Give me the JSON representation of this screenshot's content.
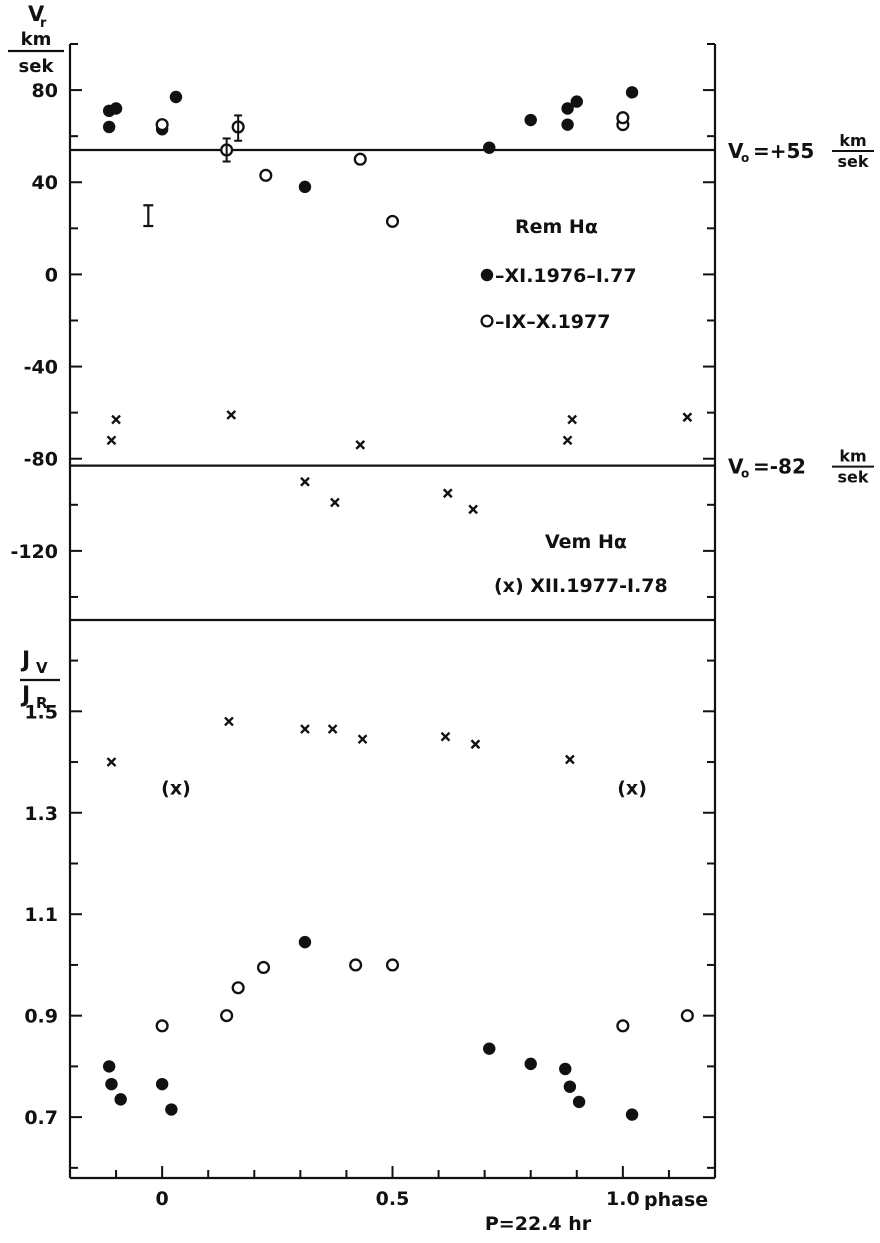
{
  "chart_data": [
    {
      "type": "scatter",
      "panel": "upper",
      "y_axis_label": {
        "symbol": "V",
        "subscript": "r",
        "unit_top": "km",
        "unit_bottom": "sek"
      },
      "ylim": [
        -150,
        100
      ],
      "xlim": [
        -0.2,
        1.2
      ],
      "y_ticks": [
        80,
        40,
        0,
        -40,
        -80,
        -120
      ],
      "y_tick_labels": [
        "80",
        "40",
        "0",
        "-40",
        "-80",
        "-120"
      ],
      "reference_lines": [
        {
          "y": 54,
          "label": "V",
          "sub": "o",
          "value_text": "=+55",
          "unit_top": "km",
          "unit_bottom": "sek"
        },
        {
          "y": -83,
          "label": "V",
          "sub": "o",
          "value_text": "=-82",
          "unit_top": "km",
          "unit_bottom": "sek"
        }
      ],
      "annotations": {
        "rem_label": "Rem Hα",
        "vem_label": "Vem Hα",
        "vem_legend_text": "(x)  XII.1977-I.78"
      },
      "legend": [
        {
          "marker": "filled-circle",
          "text": "–XI.1976–I.77"
        },
        {
          "marker": "open-circle",
          "text": "–IX–X.1977"
        }
      ],
      "error_bar_sample": {
        "x": -0.03,
        "y_low": 21,
        "y_high": 30
      },
      "series": [
        {
          "name": "–XI.1976–I.77",
          "marker": "filled-circle",
          "x": [
            -0.115,
            -0.1,
            -0.115,
            0.0,
            0.03,
            0.31,
            0.71,
            0.8,
            0.88,
            0.9,
            0.88,
            1.02
          ],
          "y": [
            71,
            72,
            64,
            63,
            77,
            38,
            55,
            67,
            72,
            75,
            65,
            79
          ]
        },
        {
          "name": "–IX–X.1977",
          "marker": "open-circle",
          "x": [
            0.0,
            0.14,
            0.165,
            0.225,
            0.43,
            0.5,
            1.0,
            1.0
          ],
          "y": [
            65,
            54,
            64,
            43,
            50,
            23,
            65,
            68
          ],
          "error_bars": [
            {
              "x": 0.14,
              "low": 49,
              "high": 59
            },
            {
              "x": 0.165,
              "low": 58,
              "high": 69
            }
          ]
        },
        {
          "name": "(x)  XII.1977-I.78",
          "marker": "x",
          "x": [
            -0.11,
            -0.1,
            0.15,
            0.31,
            0.375,
            0.43,
            0.62,
            0.675,
            0.88,
            0.89,
            1.14
          ],
          "y": [
            -72,
            -63,
            -61,
            -90,
            -99,
            -74,
            -95,
            -102,
            -72,
            -63,
            -62
          ]
        }
      ]
    },
    {
      "type": "scatter",
      "panel": "lower",
      "y_axis_label": {
        "numerator": "J",
        "numerator_sub": "V",
        "denominator": "J",
        "denominator_sub": "R"
      },
      "ylim": [
        0.58,
        1.68
      ],
      "xlim": [
        -0.2,
        1.2
      ],
      "y_ticks": [
        1.5,
        1.3,
        1.1,
        0.9,
        0.7
      ],
      "y_tick_labels": [
        "1.5",
        "1.3",
        "1.1",
        "0.9",
        "0.7"
      ],
      "x_ticks": [
        0,
        0.5,
        1.0
      ],
      "x_tick_labels": [
        "0",
        "0.5",
        "1.0"
      ],
      "x_axis_label": "phase",
      "period_label": "P=22.4 hr",
      "series": [
        {
          "name": "–XI.1976–I.77",
          "marker": "filled-circle",
          "x": [
            -0.115,
            -0.11,
            -0.09,
            0.0,
            0.02,
            0.31,
            0.71,
            0.8,
            0.875,
            0.885,
            0.905,
            1.02
          ],
          "y": [
            0.8,
            0.765,
            0.735,
            0.765,
            0.715,
            1.045,
            0.835,
            0.805,
            0.795,
            0.76,
            0.73,
            0.705
          ]
        },
        {
          "name": "–IX–X.1977",
          "marker": "open-circle",
          "x": [
            0.0,
            0.14,
            0.165,
            0.22,
            0.42,
            0.5,
            1.0,
            1.14
          ],
          "y": [
            0.88,
            0.9,
            0.955,
            0.995,
            1.0,
            1.0,
            0.88,
            0.9
          ]
        },
        {
          "name": "(x)  XII.1977-I.78",
          "marker": "x",
          "x": [
            -0.11,
            0.145,
            0.31,
            0.37,
            0.435,
            0.615,
            0.68,
            0.885
          ],
          "y": [
            1.4,
            1.48,
            1.465,
            1.465,
            1.445,
            1.45,
            1.435,
            1.405
          ]
        },
        {
          "name": "(x)",
          "marker": "bracketed-x",
          "x": [
            0.03,
            1.02
          ],
          "y": [
            1.35,
            1.35
          ]
        }
      ]
    }
  ]
}
